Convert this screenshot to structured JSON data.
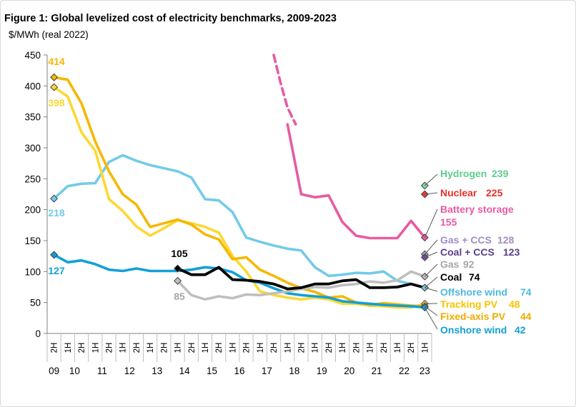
{
  "figure": {
    "title": "Figure 1: Global levelized cost of electricity benchmarks, 2009-2023"
  },
  "chart_data": {
    "type": "line",
    "title": "Figure 1: Global levelized cost of electricity benchmarks, 2009-2023",
    "ylabel": "$/MWh (real 2022)",
    "xlabel": "",
    "ylim": [
      0,
      450
    ],
    "yticks": [
      0,
      50,
      100,
      150,
      200,
      250,
      300,
      350,
      400,
      450
    ],
    "grid": false,
    "legend": "none (series labelled at right edge)",
    "x": [
      "09 2H",
      "10 1H",
      "10 2H",
      "11 1H",
      "11 2H",
      "12 1H",
      "12 2H",
      "13 1H",
      "13 2H",
      "14 1H",
      "14 2H",
      "15 1H",
      "15 2H",
      "16 1H",
      "16 2H",
      "17 1H",
      "17 2H",
      "18 1H",
      "18 2H",
      "19 1H",
      "19 2H",
      "20 1H",
      "20 2H",
      "21 1H",
      "21 2H",
      "22 1H",
      "22 2H",
      "23 1H"
    ],
    "half_labels": [
      "2H",
      "1H",
      "2H",
      "1H",
      "2H",
      "1H",
      "2H",
      "1H",
      "2H",
      "1H",
      "2H",
      "1H",
      "2H",
      "1H",
      "2H",
      "1H",
      "2H",
      "1H",
      "2H",
      "1H",
      "2H",
      "1H",
      "2H",
      "1H",
      "2H",
      "1H",
      "2H",
      "1H"
    ],
    "year_labels": [
      {
        "text": "09",
        "at": 0
      },
      {
        "text": "10",
        "at": 1.5
      },
      {
        "text": "11",
        "at": 3.5
      },
      {
        "text": "12",
        "at": 5.5
      },
      {
        "text": "13",
        "at": 7.5
      },
      {
        "text": "14",
        "at": 9.5
      },
      {
        "text": "15",
        "at": 11.5
      },
      {
        "text": "16",
        "at": 13.5
      },
      {
        "text": "17",
        "at": 15.5
      },
      {
        "text": "18",
        "at": 17.5
      },
      {
        "text": "19",
        "at": 19.5
      },
      {
        "text": "20",
        "at": 21.5
      },
      {
        "text": "21",
        "at": 23.5
      },
      {
        "text": "22",
        "at": 25.5
      },
      {
        "text": "23",
        "at": 27
      }
    ],
    "series": [
      {
        "key": "hydrogen",
        "label": "Hydrogen",
        "value_label": "239",
        "color": "#7fd8a6",
        "points": [
          [
            27,
            239
          ]
        ],
        "marker": "diamond"
      },
      {
        "key": "nuclear",
        "label": "Nuclear",
        "value_label": "225",
        "color": "#ee3b33",
        "points": [
          [
            27,
            225
          ]
        ],
        "marker": "diamond"
      },
      {
        "key": "battery",
        "label": "Battery storage",
        "value_label": "155",
        "color": "#e85aa2",
        "points": [
          [
            17,
            338
          ],
          [
            18,
            225
          ],
          [
            19,
            220
          ],
          [
            20,
            223
          ],
          [
            21,
            180
          ],
          [
            22,
            158
          ],
          [
            23,
            154
          ],
          [
            24,
            154
          ],
          [
            25,
            154
          ],
          [
            26,
            182
          ],
          [
            27,
            155
          ]
        ],
        "dashed_points": [
          [
            16,
            450
          ],
          [
            16.5,
            405
          ],
          [
            17,
            365
          ],
          [
            17.6,
            338
          ]
        ],
        "marker": "diamond"
      },
      {
        "key": "gasccs",
        "label": "Gas + CCS",
        "value_label": "128",
        "color": "#b9a3d4",
        "points": [
          [
            27,
            128
          ]
        ],
        "marker": "diamond"
      },
      {
        "key": "coalccs",
        "label": "Coal + CCS",
        "value_label": "123",
        "color": "#6d4f9c",
        "points": [
          [
            27,
            123
          ]
        ],
        "marker": "diamond"
      },
      {
        "key": "gas",
        "label": "Gas",
        "value_label": "92",
        "color": "#bfbfbf",
        "start_label": "85",
        "points": [
          [
            9,
            85
          ],
          [
            10,
            62
          ],
          [
            11,
            55
          ],
          [
            12,
            60
          ],
          [
            13,
            57
          ],
          [
            14,
            63
          ],
          [
            15,
            62
          ],
          [
            16,
            65
          ],
          [
            17,
            68
          ],
          [
            18,
            72
          ],
          [
            19,
            75
          ],
          [
            20,
            74
          ],
          [
            21,
            78
          ],
          [
            22,
            80
          ],
          [
            23,
            84
          ],
          [
            24,
            82
          ],
          [
            25,
            86
          ],
          [
            26,
            100
          ],
          [
            27,
            92
          ]
        ],
        "marker": "diamond"
      },
      {
        "key": "coal",
        "label": "Coal",
        "value_label": "74",
        "color": "#000000",
        "start_label": "105",
        "points": [
          [
            9,
            105
          ],
          [
            10,
            95
          ],
          [
            11,
            95
          ],
          [
            12,
            107
          ],
          [
            13,
            87
          ],
          [
            14,
            86
          ],
          [
            15,
            84
          ],
          [
            16,
            80
          ],
          [
            17,
            72
          ],
          [
            18,
            74
          ],
          [
            19,
            80
          ],
          [
            20,
            80
          ],
          [
            21,
            85
          ],
          [
            22,
            87
          ],
          [
            23,
            74
          ],
          [
            24,
            74
          ],
          [
            25,
            75
          ],
          [
            26,
            80
          ],
          [
            27,
            74
          ]
        ],
        "marker": "diamond"
      },
      {
        "key": "offshore",
        "label": "Offshore wind",
        "value_label": "74",
        "color": "#72cbe8",
        "start_label": "218",
        "points": [
          [
            0,
            218
          ],
          [
            1,
            238
          ],
          [
            2,
            242
          ],
          [
            3,
            243
          ],
          [
            4,
            277
          ],
          [
            5,
            288
          ],
          [
            6,
            279
          ],
          [
            7,
            272
          ],
          [
            8,
            267
          ],
          [
            9,
            262
          ],
          [
            10,
            252
          ],
          [
            11,
            217
          ],
          [
            12,
            215
          ],
          [
            13,
            196
          ],
          [
            14,
            155
          ],
          [
            15,
            148
          ],
          [
            16,
            142
          ],
          [
            17,
            137
          ],
          [
            18,
            134
          ],
          [
            19,
            107
          ],
          [
            20,
            93
          ],
          [
            21,
            95
          ],
          [
            22,
            98
          ],
          [
            23,
            97
          ],
          [
            24,
            100
          ],
          [
            25,
            85
          ],
          [
            26,
            80
          ],
          [
            27,
            74
          ]
        ],
        "marker": "diamond"
      },
      {
        "key": "tracking",
        "label": "Tracking PV",
        "value_label": "48",
        "color": "#fdd835",
        "start_label": "398",
        "points": [
          [
            0,
            398
          ],
          [
            1,
            383
          ],
          [
            2,
            325
          ],
          [
            3,
            295
          ],
          [
            4,
            217
          ],
          [
            5,
            198
          ],
          [
            6,
            173
          ],
          [
            7,
            158
          ],
          [
            8,
            170
          ],
          [
            9,
            183
          ],
          [
            10,
            178
          ],
          [
            11,
            172
          ],
          [
            12,
            163
          ],
          [
            13,
            125
          ],
          [
            14,
            100
          ],
          [
            15,
            68
          ],
          [
            16,
            62
          ],
          [
            17,
            58
          ],
          [
            18,
            55
          ],
          [
            19,
            58
          ],
          [
            20,
            55
          ],
          [
            21,
            48
          ],
          [
            22,
            48
          ],
          [
            23,
            45
          ],
          [
            24,
            44
          ],
          [
            25,
            42
          ],
          [
            26,
            42
          ],
          [
            27,
            48
          ]
        ],
        "marker": "diamond"
      },
      {
        "key": "fixed",
        "label": "Fixed-axis PV",
        "value_label": "44",
        "color": "#f5b800",
        "start_label": "414",
        "points": [
          [
            0,
            414
          ],
          [
            1,
            410
          ],
          [
            2,
            372
          ],
          [
            3,
            310
          ],
          [
            4,
            262
          ],
          [
            5,
            225
          ],
          [
            6,
            208
          ],
          [
            7,
            172
          ],
          [
            8,
            178
          ],
          [
            9,
            184
          ],
          [
            10,
            176
          ],
          [
            11,
            160
          ],
          [
            12,
            152
          ],
          [
            13,
            120
          ],
          [
            14,
            123
          ],
          [
            15,
            103
          ],
          [
            16,
            93
          ],
          [
            17,
            82
          ],
          [
            18,
            73
          ],
          [
            19,
            67
          ],
          [
            20,
            58
          ],
          [
            21,
            60
          ],
          [
            22,
            50
          ],
          [
            23,
            46
          ],
          [
            24,
            49
          ],
          [
            25,
            47
          ],
          [
            26,
            45
          ],
          [
            27,
            44
          ]
        ],
        "marker": "diamond"
      },
      {
        "key": "onshore",
        "label": "Onshore wind",
        "value_label": "42",
        "color": "#11a0d8",
        "start_label": "127",
        "points": [
          [
            0,
            127
          ],
          [
            1,
            115
          ],
          [
            2,
            118
          ],
          [
            3,
            112
          ],
          [
            4,
            103
          ],
          [
            5,
            101
          ],
          [
            6,
            105
          ],
          [
            7,
            101
          ],
          [
            8,
            101
          ],
          [
            9,
            101
          ],
          [
            10,
            103
          ],
          [
            11,
            107
          ],
          [
            12,
            105
          ],
          [
            13,
            99
          ],
          [
            14,
            86
          ],
          [
            15,
            82
          ],
          [
            16,
            73
          ],
          [
            17,
            65
          ],
          [
            18,
            62
          ],
          [
            19,
            60
          ],
          [
            20,
            58
          ],
          [
            21,
            52
          ],
          [
            22,
            50
          ],
          [
            23,
            48
          ],
          [
            24,
            46
          ],
          [
            25,
            45
          ],
          [
            26,
            44
          ],
          [
            27,
            42
          ]
        ],
        "marker": "diamond"
      }
    ]
  }
}
